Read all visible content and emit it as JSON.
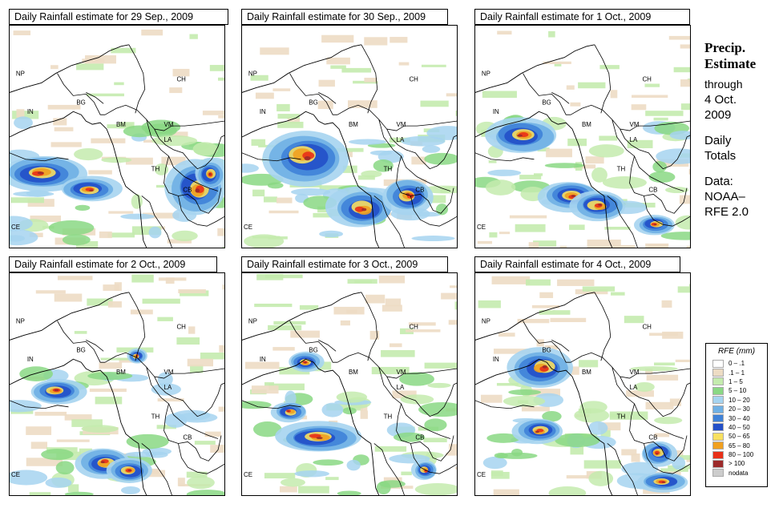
{
  "panels": [
    {
      "title": "Daily Rainfall estimate for  29 Sep., 2009",
      "labels": [
        "NP",
        "CH",
        "IN",
        "BG",
        "BM",
        "VM",
        "LA",
        "TH",
        "CB",
        "CE"
      ]
    },
    {
      "title": "Daily Rainfall estimate for  30 Sep., 2009",
      "labels": [
        "NP",
        "CH",
        "IN",
        "BG",
        "BM",
        "VM",
        "LA",
        "TH",
        "CB",
        "CE"
      ]
    },
    {
      "title": "Daily Rainfall estimate for  1 Oct., 2009",
      "labels": [
        "NP",
        "CH",
        "IN",
        "BG",
        "BM",
        "VM",
        "LA",
        "TH",
        "CB",
        "CE"
      ]
    },
    {
      "title": "Daily Rainfall estimate for  2 Oct., 2009",
      "labels": [
        "NP",
        "CH",
        "IN",
        "BG",
        "BM",
        "VM",
        "LA",
        "TH",
        "CB",
        "CE"
      ]
    },
    {
      "title": "Daily Rainfall estimate for  3 Oct., 2009",
      "labels": [
        "NP",
        "CH",
        "IN",
        "BG",
        "BM",
        "VM",
        "LA",
        "TH",
        "CB",
        "CE"
      ]
    },
    {
      "title": "Daily Rainfall estimate for  4 Oct., 2009",
      "labels": [
        "NP",
        "CH",
        "IN",
        "BG",
        "BM",
        "VM",
        "LA",
        "TH",
        "CB",
        "CE"
      ]
    }
  ],
  "side": {
    "heading1": "Precip.",
    "heading2": "Estimate",
    "through": "through",
    "date1": "4 Oct.",
    "date2": "2009",
    "daily1": "Daily",
    "daily2": "Totals",
    "data1": "Data:",
    "data2": "NOAA–",
    "data3": "RFE 2.0"
  },
  "legend": {
    "title": "RFE (mm)",
    "items": [
      {
        "label": "0 – .1",
        "color": "#ffffff"
      },
      {
        "label": ".1 – 1",
        "color": "#eddcc4"
      },
      {
        "label": "1 – 5",
        "color": "#c4ebae"
      },
      {
        "label": "5 – 10",
        "color": "#8ad884"
      },
      {
        "label": "10 – 20",
        "color": "#a6d4f0"
      },
      {
        "label": "20 – 30",
        "color": "#6fb0e4"
      },
      {
        "label": "30 – 40",
        "color": "#3f82d8"
      },
      {
        "label": "40 – 50",
        "color": "#2450c8"
      },
      {
        "label": "50 – 65",
        "color": "#f8e060"
      },
      {
        "label": "65 – 80",
        "color": "#f0a020"
      },
      {
        "label": "80 – 100",
        "color": "#e83018"
      },
      {
        "label": "> 100",
        "color": "#9c2a2a"
      },
      {
        "label": "nodata",
        "color": "#cccccc"
      }
    ]
  }
}
